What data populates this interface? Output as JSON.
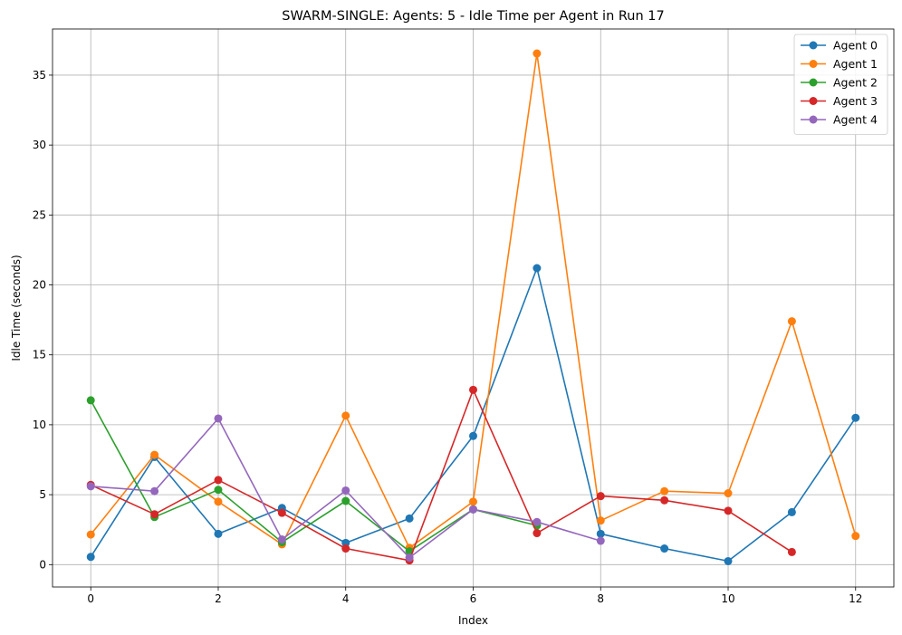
{
  "chart_data": {
    "type": "line",
    "title": "SWARM-SINGLE: Agents: 5 - Idle Time per Agent in Run 17",
    "xlabel": "Index",
    "ylabel": "Idle Time (seconds)",
    "xlim": [
      -0.6,
      12.6
    ],
    "ylim": [
      -1.6,
      38.3
    ],
    "xticks": [
      0,
      2,
      4,
      6,
      8,
      10,
      12
    ],
    "yticks": [
      0,
      5,
      10,
      15,
      20,
      25,
      30,
      35
    ],
    "grid": true,
    "legend_position": "top-right",
    "series": [
      {
        "name": "Agent 0",
        "color": "#1f77b4",
        "x": [
          0,
          1,
          2,
          3,
          4,
          5,
          6,
          7,
          8,
          9,
          10,
          11,
          12
        ],
        "values": [
          0.55,
          7.7,
          2.2,
          4.05,
          1.55,
          3.3,
          9.2,
          21.2,
          2.2,
          1.15,
          0.25,
          3.75,
          10.5
        ]
      },
      {
        "name": "Agent 1",
        "color": "#ff7f0e",
        "x": [
          0,
          1,
          2,
          3,
          4,
          5,
          6,
          7,
          8,
          9,
          10,
          11,
          12
        ],
        "values": [
          2.15,
          7.85,
          4.5,
          1.45,
          10.65,
          1.2,
          4.5,
          36.55,
          3.15,
          5.25,
          5.1,
          17.4,
          2.05
        ]
      },
      {
        "name": "Agent 2",
        "color": "#2ca02c",
        "x": [
          0,
          1,
          2,
          3,
          4,
          5,
          6,
          7
        ],
        "values": [
          11.75,
          3.4,
          5.35,
          1.6,
          4.55,
          0.95,
          3.95,
          2.8
        ]
      },
      {
        "name": "Agent 3",
        "color": "#d62728",
        "x": [
          0,
          1,
          2,
          3,
          4,
          5,
          6,
          7,
          8,
          9,
          10,
          11
        ],
        "values": [
          5.7,
          3.6,
          6.05,
          3.7,
          1.15,
          0.3,
          12.5,
          2.25,
          4.9,
          4.6,
          3.85,
          0.9
        ]
      },
      {
        "name": "Agent 4",
        "color": "#9467bd",
        "x": [
          0,
          1,
          2,
          3,
          4,
          5,
          6,
          7,
          8
        ],
        "values": [
          5.6,
          5.25,
          10.45,
          1.8,
          5.3,
          0.5,
          3.95,
          3.05,
          1.7
        ]
      }
    ]
  }
}
